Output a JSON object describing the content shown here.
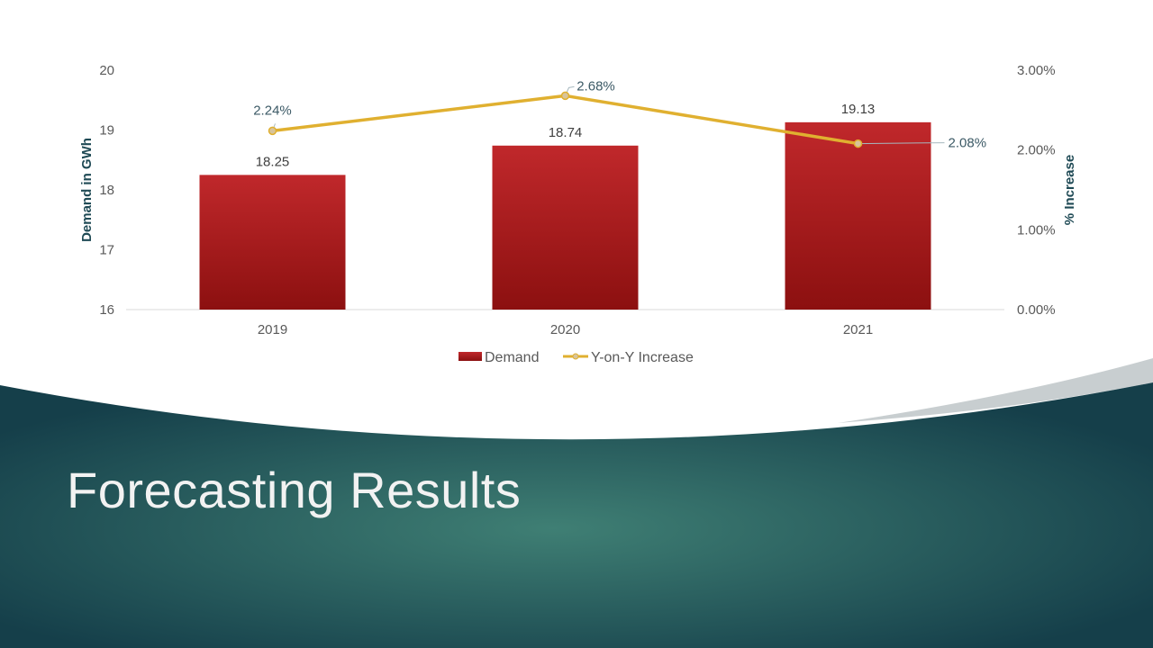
{
  "slide": {
    "title": "Forecasting Results"
  },
  "colors": {
    "bar": "#c0282b",
    "bar_dark": "#8c1010",
    "line": "#e0b030",
    "marker_fill": "#d8c49a",
    "band_dark": "#153f4a",
    "band_light": "#3f7f74",
    "accent_grey": "#c8ced0"
  },
  "chart_data": {
    "type": "bar",
    "categories": [
      "2019",
      "2020",
      "2021"
    ],
    "series": [
      {
        "name": "Demand",
        "type": "bar",
        "axis": "left",
        "values": [
          18.25,
          18.74,
          19.13
        ],
        "labels": [
          "18.25",
          "18.74",
          "19.13"
        ]
      },
      {
        "name": "Y-on-Y Increase",
        "type": "line",
        "axis": "right",
        "values": [
          2.24,
          2.68,
          2.08
        ],
        "labels": [
          "2.24%",
          "2.68%",
          "2.08%"
        ]
      }
    ],
    "ylabel": "Demand in GWh",
    "ylim": [
      16,
      20
    ],
    "yticks": [
      "16",
      "17",
      "18",
      "19",
      "20"
    ],
    "y2label": "% Increase",
    "y2lim": [
      0,
      3
    ],
    "y2ticks": [
      "0.00%",
      "1.00%",
      "2.00%",
      "3.00%"
    ],
    "grid": false,
    "legend_position": "bottom"
  }
}
